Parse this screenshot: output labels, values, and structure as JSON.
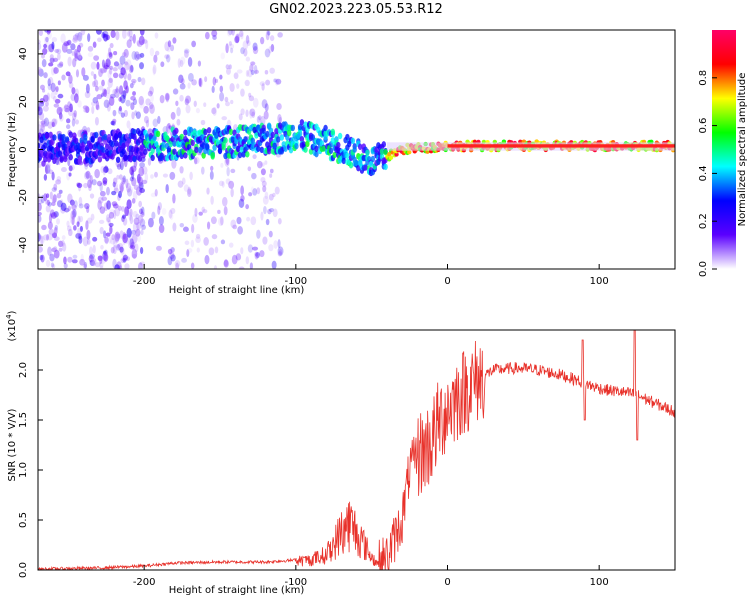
{
  "title": "GN02.2023.223.05.53.R12",
  "chart_data": [
    {
      "type": "heatmap",
      "name": "spectrogram",
      "xlabel": "Height of straight line (km)",
      "ylabel": "Frequency (Hz)",
      "xlim": [
        -270,
        150
      ],
      "ylim": [
        -50,
        50
      ],
      "x_ticks": [
        -200,
        -100,
        0,
        100
      ],
      "y_ticks": [
        -40,
        -20,
        0,
        20,
        40
      ],
      "x_tick_labels": [
        "-200",
        "-100",
        "0",
        "100"
      ],
      "y_tick_labels": [
        "-40",
        "-20",
        "0",
        "20",
        "40"
      ],
      "colorbar": {
        "label": "Normalized spectral amplitude",
        "range": [
          0,
          1
        ],
        "ticks": [
          0.0,
          0.2,
          0.4,
          0.6,
          0.8
        ],
        "tick_labels": [
          "0.0",
          "0.2",
          "0.4",
          "0.6",
          "0.8"
        ],
        "colors": [
          "#ffffff",
          "#5a00ff",
          "#0000ff",
          "#00ffff",
          "#00ff00",
          "#ffff00",
          "#ff0000",
          "#ff0066"
        ]
      },
      "ridge": {
        "x": [
          -270,
          -200,
          -150,
          -120,
          -100,
          -80,
          -60,
          -50,
          -40,
          -30,
          -20,
          -10,
          0,
          150
        ],
        "y": [
          0,
          2,
          3,
          4,
          6,
          3,
          -2,
          -5,
          -3,
          0,
          0.5,
          1,
          1.5,
          1.5
        ]
      }
    },
    {
      "type": "line",
      "name": "snr",
      "xlabel": "Height of straight line (km)",
      "ylabel": "SNR (10 * V/V)",
      "multiplier_label": "(x10",
      "multiplier_exp": "4",
      "xlim": [
        -270,
        150
      ],
      "ylim": [
        0,
        2.4
      ],
      "x_ticks": [
        -200,
        -100,
        0,
        100
      ],
      "y_ticks": [
        0.0,
        0.5,
        1.0,
        1.5,
        2.0
      ],
      "x_tick_labels": [
        "-200",
        "-100",
        "0",
        "100"
      ],
      "y_tick_labels": [
        "0.0",
        "0.5",
        "1.0",
        "1.5",
        "2.0"
      ],
      "color": "#e8312a",
      "x": [
        -270,
        -230,
        -200,
        -180,
        -150,
        -120,
        -100,
        -90,
        -80,
        -75,
        -70,
        -65,
        -60,
        -55,
        -50,
        -45,
        -40,
        -30,
        -25,
        -20,
        -15,
        -10,
        -5,
        0,
        10,
        20,
        30,
        45,
        60,
        75,
        85,
        95,
        105,
        115,
        125,
        135,
        150
      ],
      "y": [
        0.01,
        0.02,
        0.04,
        0.07,
        0.08,
        0.08,
        0.1,
        0.12,
        0.18,
        0.3,
        0.45,
        0.55,
        0.45,
        0.3,
        0.15,
        0.06,
        0.12,
        0.5,
        1.0,
        1.15,
        1.2,
        1.3,
        1.5,
        1.62,
        1.78,
        1.9,
        2.0,
        2.02,
        2.0,
        1.95,
        1.9,
        1.84,
        1.8,
        1.78,
        1.75,
        1.68,
        1.58
      ]
    }
  ]
}
